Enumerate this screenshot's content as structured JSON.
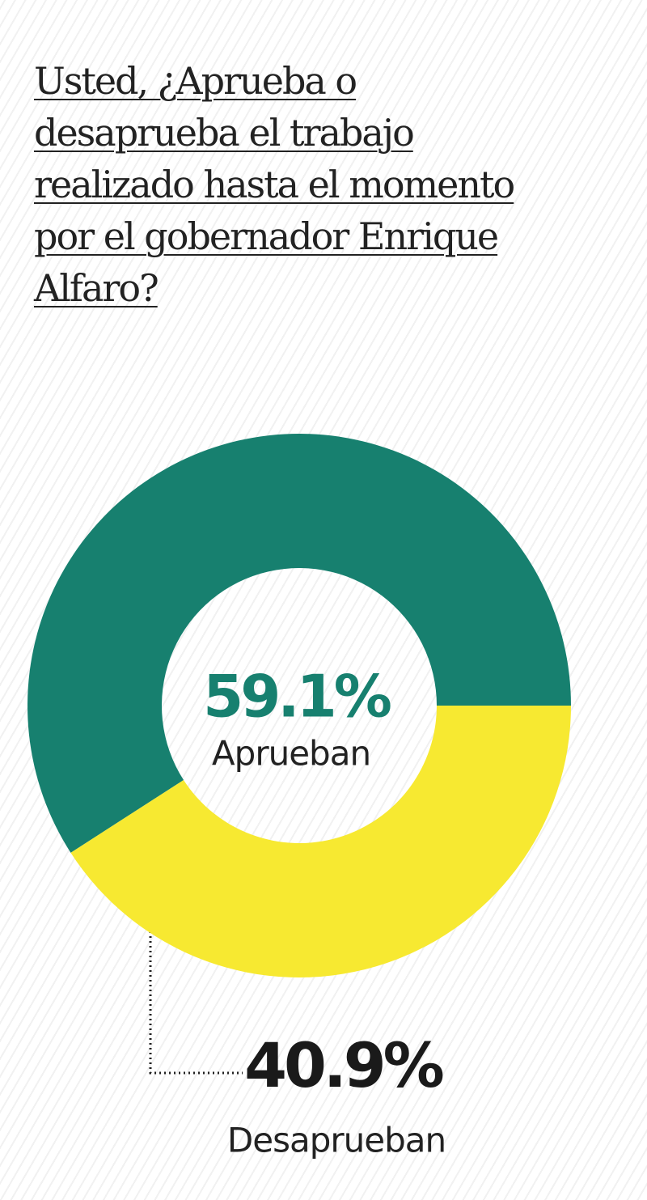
{
  "chart_data": {
    "type": "donut",
    "title": "Usted, ¿Aprueba o desaprueba el trabajo realizado hasta el momento por el gobernador Enrique Alfaro?",
    "categories": [
      "Aprueban",
      "Desaprueban"
    ],
    "values": [
      59.1,
      40.9
    ],
    "value_labels": [
      "59.1%",
      "40.9%"
    ],
    "colors": [
      "#17806f",
      "#f7e931"
    ]
  }
}
